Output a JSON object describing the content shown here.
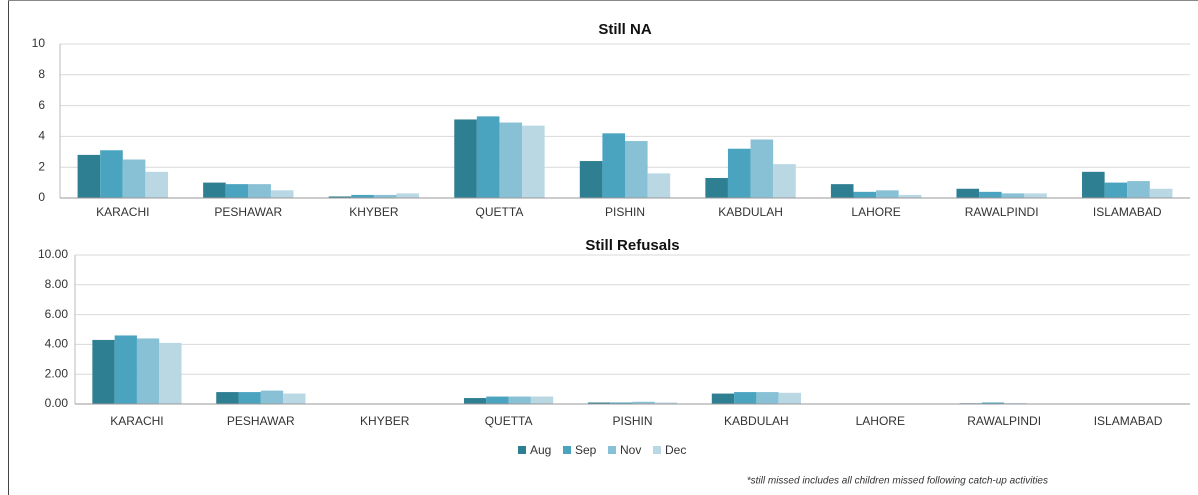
{
  "chart_data": [
    {
      "type": "bar",
      "title": "Still NA",
      "categories": [
        "KARACHI",
        "PESHAWAR",
        "KHYBER",
        "QUETTA",
        "PISHIN",
        "KABDULAH",
        "LAHORE",
        "RAWALPINDI",
        "ISLAMABAD"
      ],
      "series": [
        {
          "name": "Aug",
          "color": "#2f7f92",
          "values": [
            2.8,
            1.0,
            0.1,
            5.1,
            2.4,
            1.3,
            0.9,
            0.6,
            1.7
          ]
        },
        {
          "name": "Sep",
          "color": "#4aa4bf",
          "values": [
            3.1,
            0.9,
            0.2,
            5.3,
            4.2,
            3.2,
            0.4,
            0.4,
            1.0
          ]
        },
        {
          "name": "Nov",
          "color": "#88c1d6",
          "values": [
            2.5,
            0.9,
            0.2,
            4.9,
            3.7,
            3.8,
            0.5,
            0.3,
            1.1
          ]
        },
        {
          "name": "Dec",
          "color": "#b9d8e4",
          "values": [
            1.7,
            0.5,
            0.3,
            4.7,
            1.6,
            2.2,
            0.2,
            0.3,
            0.6
          ]
        }
      ],
      "ylim": [
        0,
        10
      ],
      "yticks": [
        0,
        2,
        4,
        6,
        8,
        10
      ],
      "grid": true
    },
    {
      "type": "bar",
      "title": "Still Refusals",
      "categories": [
        "KARACHI",
        "PESHAWAR",
        "KHYBER",
        "QUETTA",
        "PISHIN",
        "KABDULAH",
        "LAHORE",
        "RAWALPINDI",
        "ISLAMABAD"
      ],
      "series": [
        {
          "name": "Aug",
          "color": "#2f7f92",
          "values": [
            4.3,
            0.8,
            0,
            0.4,
            0.1,
            0.7,
            0,
            0.05,
            0
          ]
        },
        {
          "name": "Sep",
          "color": "#4aa4bf",
          "values": [
            4.6,
            0.8,
            0,
            0.5,
            0.1,
            0.8,
            0,
            0.1,
            0
          ]
        },
        {
          "name": "Nov",
          "color": "#88c1d6",
          "values": [
            4.4,
            0.9,
            0,
            0.5,
            0.15,
            0.8,
            0,
            0.05,
            0
          ]
        },
        {
          "name": "Dec",
          "color": "#b9d8e4",
          "values": [
            4.1,
            0.7,
            0,
            0.5,
            0.1,
            0.75,
            0,
            0,
            0
          ]
        }
      ],
      "ylim": [
        0,
        10
      ],
      "yticks": [
        {
          "value": 0,
          "label": "0.00"
        },
        {
          "value": 2,
          "label": "2.00"
        },
        {
          "value": 4,
          "label": "4.00"
        },
        {
          "value": 6,
          "label": "6.00"
        },
        {
          "value": 8,
          "label": "8.00"
        },
        {
          "value": 10,
          "label": "10.00"
        }
      ],
      "grid": true,
      "legend": "bottom"
    }
  ],
  "footnote": "*still missed includes all children missed following catch-up activities"
}
